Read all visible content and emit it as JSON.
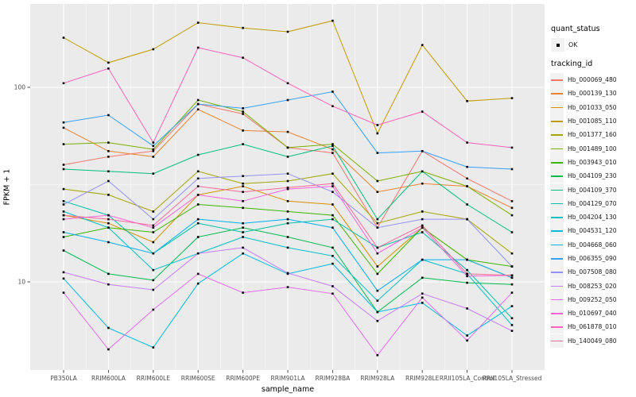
{
  "legend": {
    "quant_status_title": "quant_status",
    "quant_status_value": "OK",
    "tracking_id_title": "tracking_id"
  },
  "chart_data": {
    "type": "line",
    "title": "",
    "xlabel": "sample_name",
    "ylabel": "FPKM + 1",
    "yscale": "log10",
    "ylim": [
      3.5,
      269
    ],
    "y_ticks": [
      {
        "label": "10",
        "value": 10
      },
      {
        "label": "100",
        "value": 100
      }
    ],
    "grid": "white-on-gray",
    "legend_position": "right",
    "panel_color": "#EBEBEB",
    "point_color": "#000000",
    "categories": [
      "PB350LA",
      "RRIM600LA",
      "RRIM600LE",
      "RRIM600SE",
      "RRIM600PE",
      "RRIM901LA",
      "RRIM928BA",
      "RRIM928LA",
      "RRIM928LE",
      "RRII105LA_Control",
      "RRII105LA_Stressed"
    ],
    "series": [
      {
        "name": "Hb_000069_480",
        "color": "#F8766D",
        "values": [
          40,
          44,
          47,
          82,
          73,
          49,
          46,
          19,
          47,
          34,
          26
        ]
      },
      {
        "name": "Hb_000139_130",
        "color": "#EA8331",
        "values": [
          62,
          47,
          44,
          77,
          60,
          59,
          48,
          29,
          32,
          31,
          24
        ]
      },
      {
        "name": "Hb_001033_050",
        "color": "#D89000",
        "values": [
          22,
          20,
          16,
          28,
          31,
          26,
          25,
          12,
          19,
          13,
          10.5
        ]
      },
      {
        "name": "Hb_001085_110",
        "color": "#C09B00",
        "values": [
          180,
          134,
          157,
          215,
          202,
          193,
          220,
          58,
          165,
          85,
          88
        ]
      },
      {
        "name": "Hb_001377_160",
        "color": "#A3A500",
        "values": [
          30,
          28,
          23,
          37,
          32,
          33,
          36,
          20,
          23,
          21,
          14
        ]
      },
      {
        "name": "Hb_001489_100",
        "color": "#7CAE00",
        "values": [
          51,
          52,
          48,
          86,
          75,
          49,
          51,
          33,
          37,
          31,
          22
        ]
      },
      {
        "name": "Hb_003943_010",
        "color": "#39B600",
        "values": [
          17,
          19,
          18,
          25,
          24,
          23,
          22,
          11,
          19,
          13,
          12
        ]
      },
      {
        "name": "Hb_004109_230",
        "color": "#00BB4E",
        "values": [
          14.5,
          11,
          10.2,
          17,
          19,
          17,
          15,
          7,
          10.5,
          9.9,
          9.7
        ]
      },
      {
        "name": "Hb_004109_370",
        "color": "#00BF7D",
        "values": [
          38,
          37,
          36,
          45,
          51,
          44,
          50,
          21,
          37,
          25,
          18
        ]
      },
      {
        "name": "Hb_004129_070",
        "color": "#00C1A3",
        "values": [
          26,
          22,
          14,
          20,
          18,
          20,
          21,
          15,
          18,
          11.5,
          6.5
        ]
      },
      {
        "name": "Hb_004204_130",
        "color": "#00BFC4",
        "values": [
          23,
          19,
          11.5,
          14,
          17,
          15,
          13.6,
          8,
          13,
          11,
          6
        ]
      },
      {
        "name": "Hb_004531_120",
        "color": "#00BAE0",
        "values": [
          10.4,
          5.8,
          4.6,
          9.8,
          14,
          11,
          12.4,
          7,
          7.8,
          5.3,
          7.5
        ]
      },
      {
        "name": "Hb_004668_060",
        "color": "#00B0F6",
        "values": [
          18,
          16,
          14,
          21,
          20,
          21,
          19,
          9,
          13,
          13,
          10.5
        ]
      },
      {
        "name": "Hb_006355_090",
        "color": "#35A2FF",
        "values": [
          66,
          72,
          50,
          82,
          78,
          86,
          95,
          46,
          47,
          39,
          38
        ]
      },
      {
        "name": "Hb_007508_080",
        "color": "#9590FF",
        "values": [
          25,
          33,
          21,
          34,
          35,
          36,
          29,
          19,
          21,
          21,
          12
        ]
      },
      {
        "name": "Hb_008253_020",
        "color": "#C77CFF",
        "values": [
          11.2,
          9.7,
          9.1,
          14,
          15,
          11.1,
          9.5,
          6.3,
          8.7,
          7.3,
          5.6
        ]
      },
      {
        "name": "Hb_009252_050",
        "color": "#E76BF3",
        "values": [
          8.8,
          4.5,
          7.2,
          11,
          8.8,
          9.4,
          8.7,
          4.2,
          8.3,
          5,
          8.8
        ]
      },
      {
        "name": "Hb_010697_040",
        "color": "#FA62DB",
        "values": [
          21,
          22,
          19,
          28,
          26,
          30,
          31,
          14,
          19,
          10.7,
          10.8
        ]
      },
      {
        "name": "Hb_061878_010",
        "color": "#FF62BC",
        "values": [
          105,
          125,
          52,
          160,
          142,
          105,
          80,
          64,
          75,
          52,
          49
        ]
      },
      {
        "name": "Hb_140049_080",
        "color": "#FF6A98",
        "values": [
          22,
          21,
          19.5,
          31,
          29,
          30.5,
          32,
          15,
          19.5,
          11,
          10.8
        ]
      }
    ]
  }
}
